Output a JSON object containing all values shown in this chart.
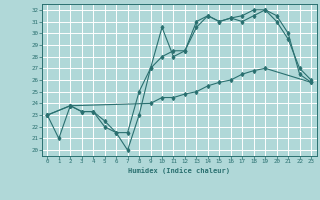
{
  "xlabel": "Humidex (Indice chaleur)",
  "xlim": [
    -0.5,
    23.5
  ],
  "ylim": [
    19.5,
    32.5
  ],
  "xticks": [
    0,
    1,
    2,
    3,
    4,
    5,
    6,
    7,
    8,
    9,
    10,
    11,
    12,
    13,
    14,
    15,
    16,
    17,
    18,
    19,
    20,
    21,
    22,
    23
  ],
  "yticks": [
    20,
    21,
    22,
    23,
    24,
    25,
    26,
    27,
    28,
    29,
    30,
    31,
    32
  ],
  "bg_color": "#b0d8d8",
  "line_color": "#2a7070",
  "grid_color": "#ffffff",
  "line1_x": [
    0,
    1,
    2,
    3,
    4,
    5,
    6,
    7,
    8,
    9,
    10,
    11,
    12,
    13,
    14,
    15,
    16,
    17,
    18,
    19,
    20,
    21,
    22,
    23
  ],
  "line1_y": [
    23,
    21,
    23.8,
    23.3,
    23.3,
    22,
    21.5,
    20,
    23,
    27,
    30.5,
    28,
    28.5,
    31,
    31.5,
    31,
    31.3,
    31,
    31.5,
    32,
    31,
    29.5,
    27,
    26
  ],
  "line2_x": [
    0,
    2,
    3,
    4,
    5,
    6,
    7,
    8,
    9,
    10,
    11,
    12,
    13,
    14,
    15,
    16,
    17,
    18,
    19,
    20,
    21,
    22,
    23
  ],
  "line2_y": [
    23,
    23.8,
    23.3,
    23.3,
    22.5,
    21.5,
    21.5,
    25,
    27,
    28,
    28.5,
    28.5,
    30.5,
    31.5,
    31,
    31.3,
    31.5,
    32,
    32,
    31.5,
    30,
    26.5,
    25.8
  ],
  "line3_x": [
    0,
    2,
    9,
    10,
    11,
    12,
    13,
    14,
    15,
    16,
    17,
    18,
    19,
    23
  ],
  "line3_y": [
    23,
    23.8,
    24,
    24.5,
    24.5,
    24.8,
    25,
    25.5,
    25.8,
    26,
    26.5,
    26.8,
    27,
    25.8
  ]
}
